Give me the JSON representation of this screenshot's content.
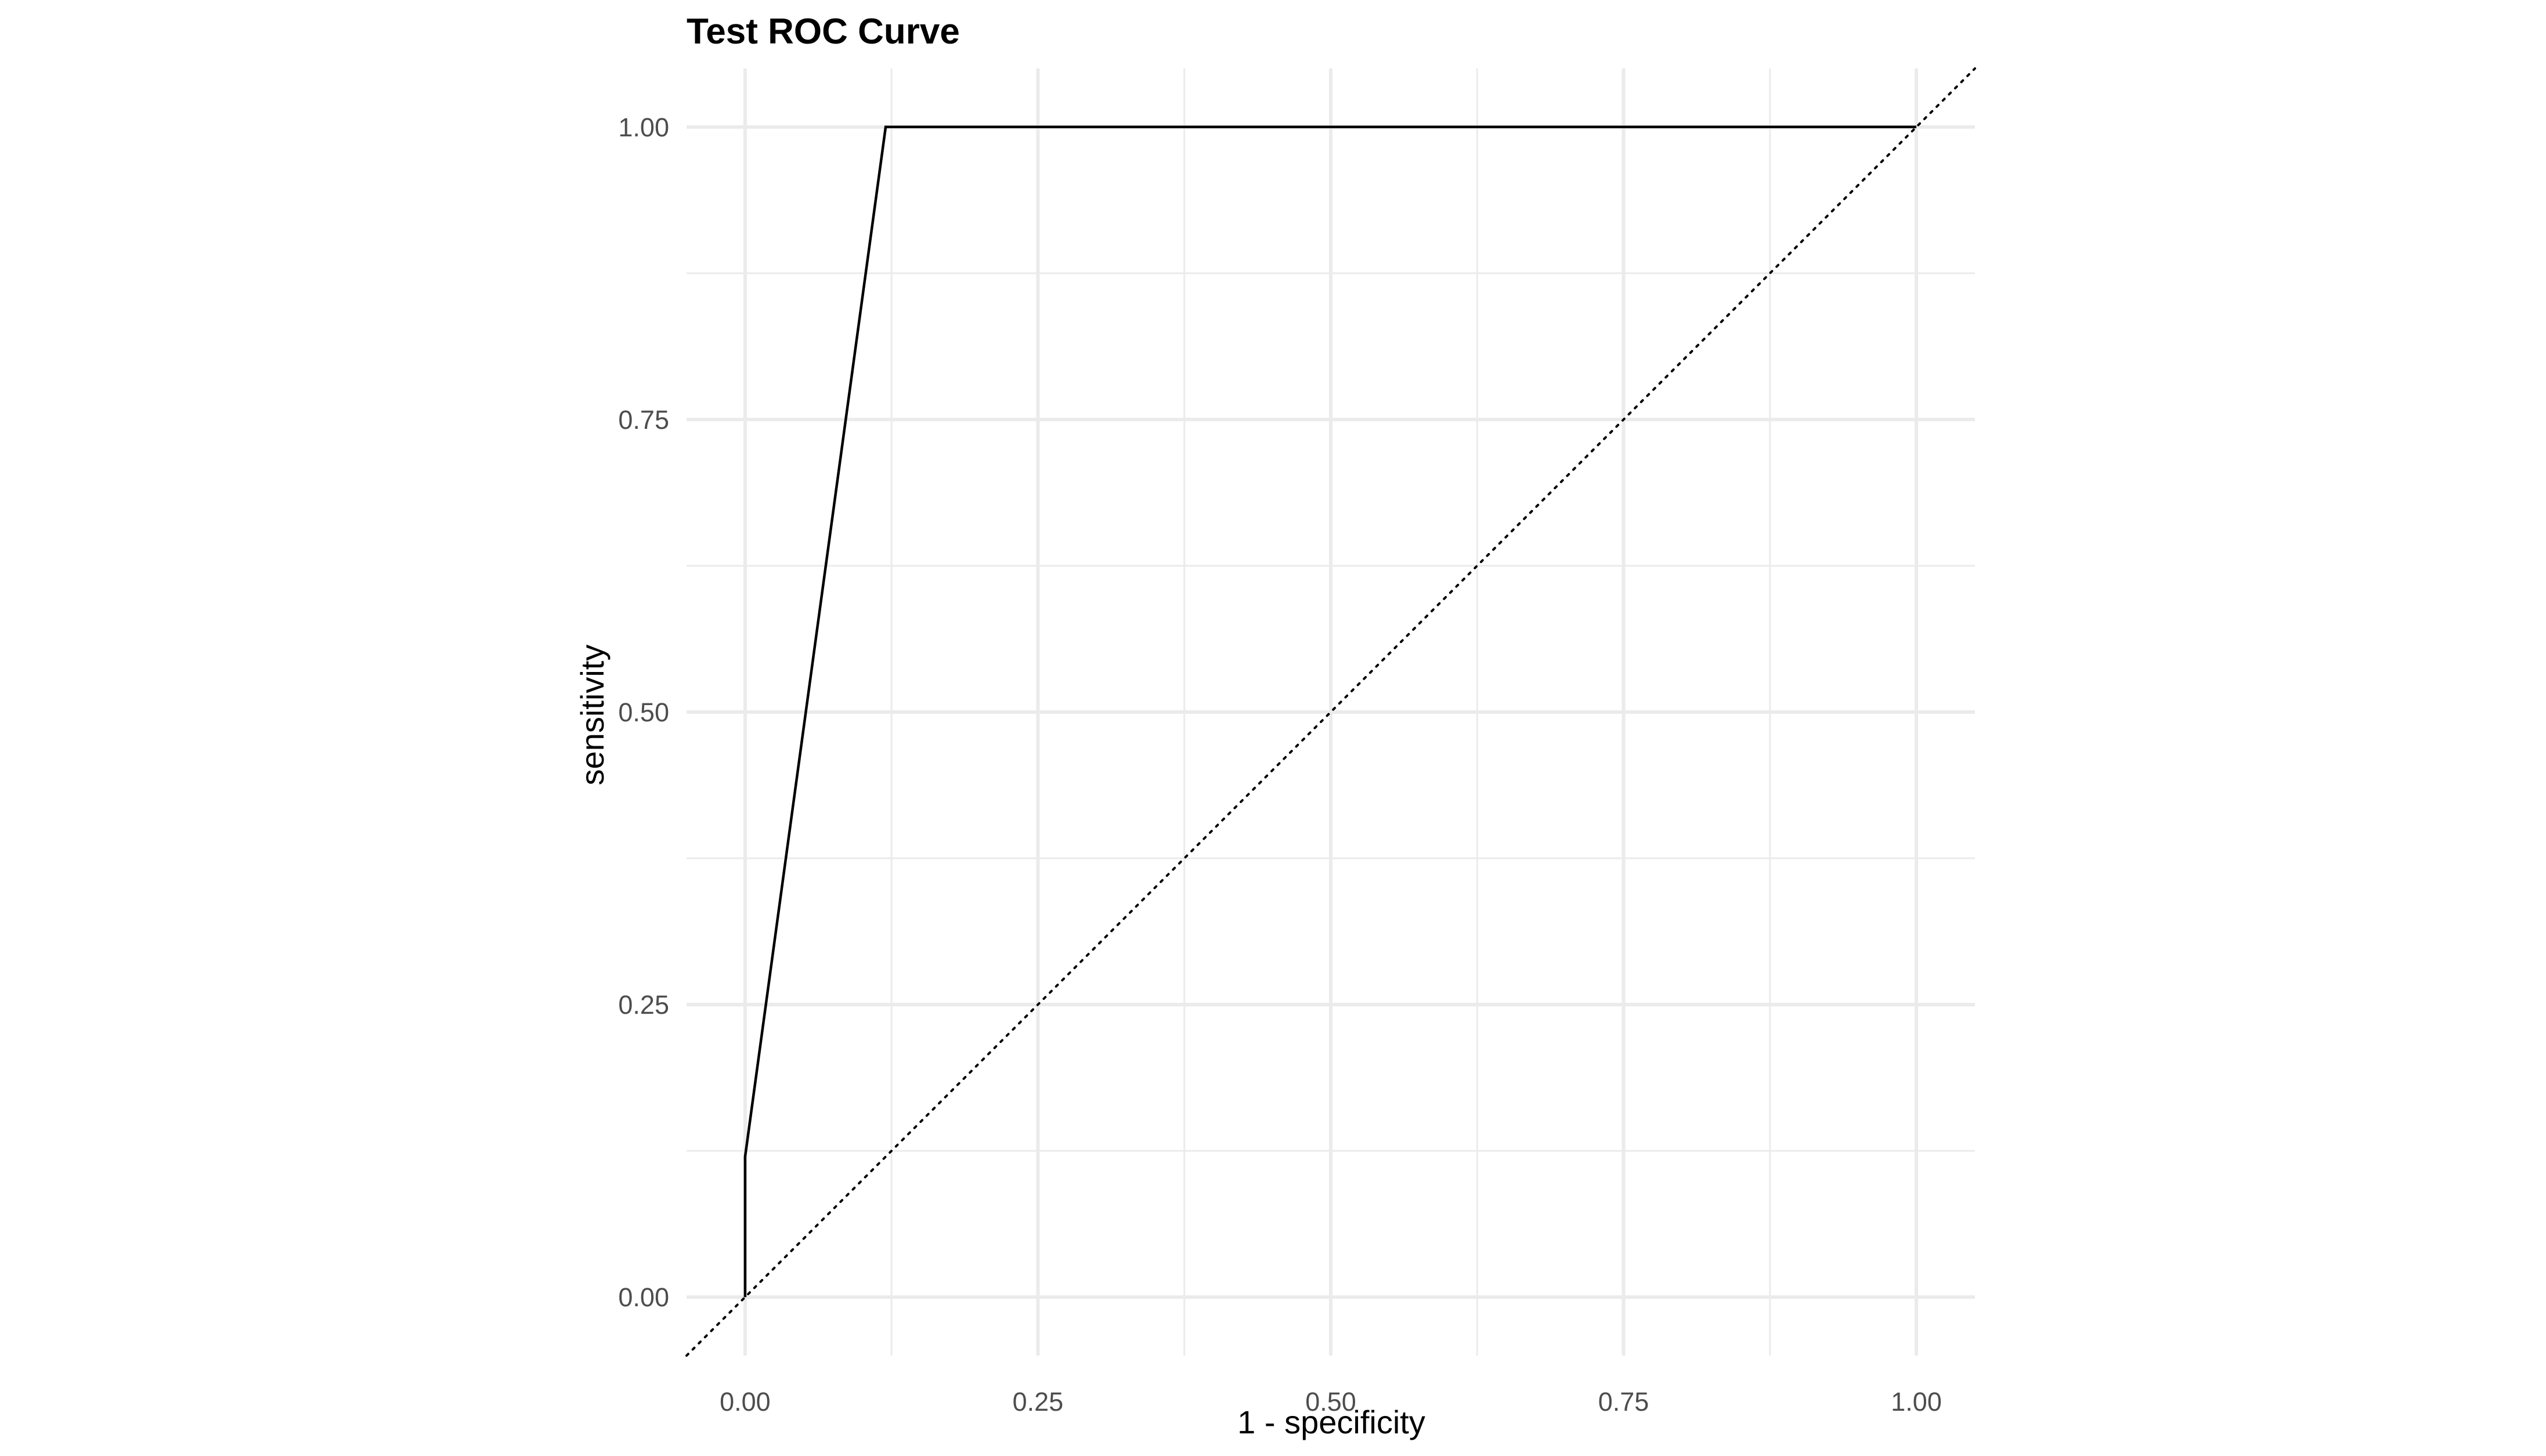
{
  "colors": {
    "background": "#ffffff",
    "grid": "#ebebeb",
    "curve": "#000000",
    "diagonal": "#000000",
    "tick_text": "#4d4d4d"
  },
  "chart_data": {
    "type": "line",
    "title": "Test ROC Curve",
    "xlabel": "1 - specificity",
    "ylabel": "sensitivity",
    "xlim": [
      -0.05,
      1.05
    ],
    "ylim": [
      -0.05,
      1.05
    ],
    "grid": true,
    "coord_equal": true,
    "x_ticks": [
      0,
      0.25,
      0.5,
      0.75,
      1
    ],
    "y_ticks": [
      0,
      0.25,
      0.5,
      0.75,
      1
    ],
    "x_tick_labels": [
      "0.00",
      "0.25",
      "0.50",
      "0.75",
      "1.00"
    ],
    "y_tick_labels": [
      "0.00",
      "0.25",
      "0.50",
      "0.75",
      "1.00"
    ],
    "series": [
      {
        "style": "solid",
        "x": [
          0,
          0,
          0.12,
          1
        ],
        "y": [
          0,
          0.12,
          1,
          1
        ]
      }
    ],
    "reference_line": {
      "style": "dotted",
      "intercept": 0,
      "slope": 1
    }
  }
}
